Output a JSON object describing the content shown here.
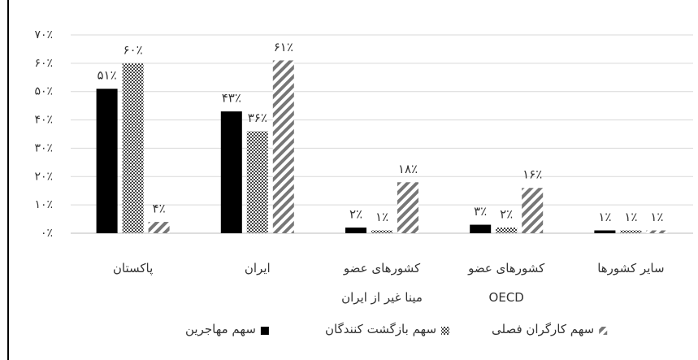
{
  "chart_data": {
    "type": "bar",
    "categories": [
      "پاکستان",
      "ایران",
      "کشورهای عضو\nمینا غیر از ایران",
      "کشورهای عضو\nOECD",
      "سایر کشورها"
    ],
    "series": [
      {
        "name": "سهم مهاجرین",
        "color": "#000000",
        "values": [
          51,
          43,
          2,
          3,
          1
        ],
        "value_labels": [
          "۵۱٪",
          "۴۳٪",
          "۲٪",
          "۳٪",
          "۱٪"
        ]
      },
      {
        "name": "سهم بازگشت کنندگان",
        "color": "#444444",
        "values": [
          60,
          36,
          1,
          2,
          1
        ],
        "value_labels": [
          "۶۰٪",
          "۳۶٪",
          "۱٪",
          "۲٪",
          "۱٪"
        ]
      },
      {
        "name": "سهم کارگران فصلی",
        "color": "#777777",
        "values": [
          4,
          61,
          18,
          16,
          1
        ],
        "value_labels": [
          "۴٪",
          "۶۱٪",
          "۱۸٪",
          "۱۶٪",
          "۱٪"
        ]
      }
    ],
    "ylim": [
      0,
      70
    ],
    "yticks": [
      {
        "value": 0,
        "label": "۰٪"
      },
      {
        "value": 10,
        "label": "۱۰٪"
      },
      {
        "value": 20,
        "label": "۲۰٪"
      },
      {
        "value": 30,
        "label": "۳۰٪"
      },
      {
        "value": 40,
        "label": "۴۰٪"
      },
      {
        "value": 50,
        "label": "۵۰٪"
      },
      {
        "value": 60,
        "label": "۶۰٪"
      },
      {
        "value": 70,
        "label": "۷۰٪"
      }
    ],
    "grid": true
  }
}
